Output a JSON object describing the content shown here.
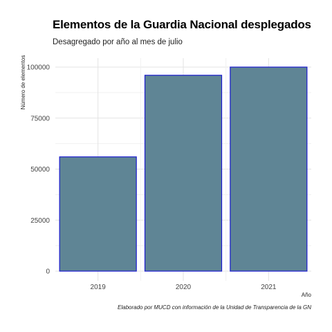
{
  "chart_data": {
    "type": "bar",
    "title": "Elementos de la Guardia Nacional desplegados",
    "subtitle": "Desagregado por año al mes de julio",
    "caption": "Elaborado por MUCD con información de la Unidad de Transparencia de la GN",
    "xlabel": "Año",
    "ylabel": "Número de elementos",
    "categories": [
      "2019",
      "2020",
      "2021"
    ],
    "values": [
      56000,
      96000,
      100000
    ],
    "ylim": [
      0,
      105000
    ],
    "yticks": [
      0,
      25000,
      50000,
      75000,
      100000
    ],
    "grid": true,
    "colors": {
      "bar_fill": "#5f8595",
      "bar_stroke": "#1a1ad0",
      "grid_major": "#e3e3e3",
      "grid_minor": "#f1f1f1"
    }
  }
}
